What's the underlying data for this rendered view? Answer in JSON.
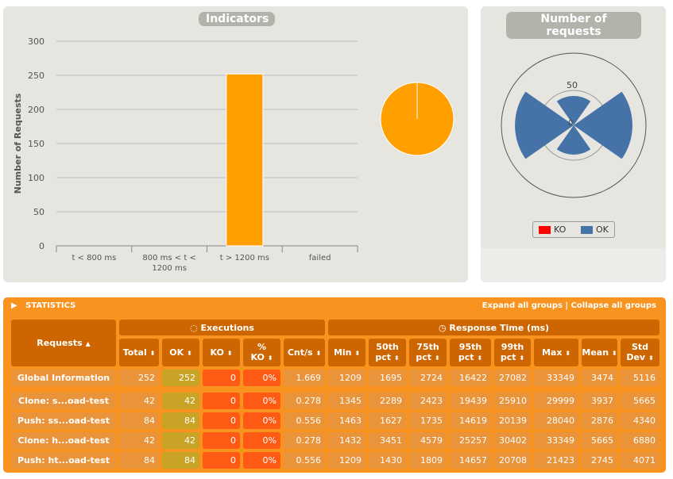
{
  "indicators": {
    "title": "Indicators",
    "chart_data": {
      "type": "bar",
      "categories": [
        "t < 800 ms",
        "800 ms < t < 1200 ms",
        "t > 1200 ms",
        "failed"
      ],
      "values": [
        0,
        0,
        252,
        0
      ],
      "ylabel": "Number of Requests",
      "ylim": [
        0,
        300
      ],
      "yticks": [
        0,
        50,
        100,
        150,
        200,
        250,
        300
      ],
      "grid": true,
      "color": "#ff9f00"
    },
    "pie": {
      "type": "pie",
      "values": [
        0,
        0,
        252,
        0
      ],
      "colors": [
        "#ff9f00"
      ]
    }
  },
  "requests_chart": {
    "title": "Number of requests",
    "chart_data": {
      "type": "polar",
      "categories": [
        "Clone: s...oad-test",
        "Push: ss...oad-test",
        "Clone: h...oad-test",
        "Push: ht...oad-test"
      ],
      "series": [
        {
          "name": "KO",
          "values": [
            0,
            0,
            0,
            0
          ],
          "color": "#ff0000"
        },
        {
          "name": "OK",
          "values": [
            42,
            84,
            42,
            84
          ],
          "color": "#4572a7"
        }
      ],
      "rticks": [
        0,
        50
      ]
    },
    "legend": {
      "ko": "KO",
      "ok": "OK"
    }
  },
  "statistics": {
    "title": "STATISTICS",
    "expand": "Expand all groups",
    "sep": "|",
    "collapse": "Collapse all groups",
    "group_headers": {
      "requests": "Requests",
      "executions": "Executions",
      "response": "Response Time (ms)"
    },
    "columns": [
      "Total",
      "OK",
      "KO",
      "% KO",
      "Cnt/s",
      "Min",
      "50th pct",
      "75th pct",
      "95th pct",
      "99th pct",
      "Max",
      "Mean",
      "Std Dev"
    ],
    "rows": [
      [
        "Global Information",
        "252",
        "252",
        "0",
        "0%",
        "1.669",
        "1209",
        "1695",
        "2724",
        "16422",
        "27082",
        "33349",
        "3474",
        "5116"
      ],
      [
        "Clone: s...oad-test",
        "42",
        "42",
        "0",
        "0%",
        "0.278",
        "1345",
        "2289",
        "2423",
        "19439",
        "25910",
        "29999",
        "3937",
        "5665"
      ],
      [
        "Push: ss...oad-test",
        "84",
        "84",
        "0",
        "0%",
        "0.556",
        "1463",
        "1627",
        "1735",
        "14619",
        "20139",
        "28040",
        "2876",
        "4340"
      ],
      [
        "Clone: h...oad-test",
        "42",
        "42",
        "0",
        "0%",
        "0.278",
        "1432",
        "3451",
        "4579",
        "25257",
        "30402",
        "33349",
        "5665",
        "6880"
      ],
      [
        "Push: ht...oad-test",
        "84",
        "84",
        "0",
        "0%",
        "0.556",
        "1209",
        "1430",
        "1809",
        "14657",
        "20708",
        "21423",
        "2745",
        "4071"
      ]
    ]
  }
}
